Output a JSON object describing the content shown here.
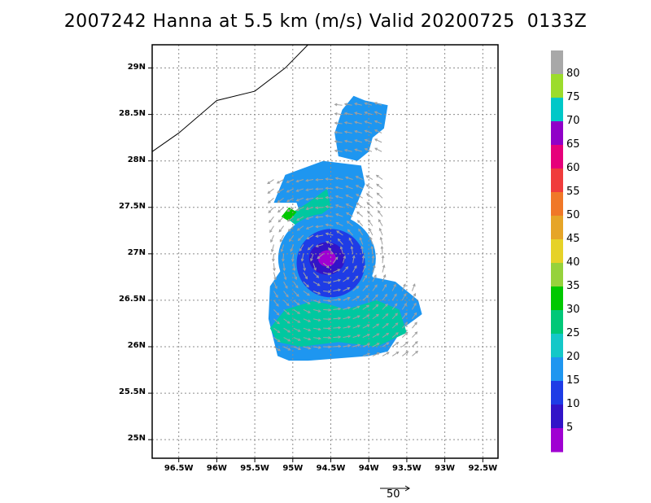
{
  "title": "2007242 Hanna at 5.5 km (m/s) Valid 20200725  0133Z",
  "map": {
    "lon_range": [
      -96.85,
      -92.3
    ],
    "lat_range": [
      24.8,
      29.25
    ],
    "lat_ticks": [
      "29N",
      "28.5N",
      "28N",
      "27.5N",
      "27N",
      "26.5N",
      "26N",
      "25.5N",
      "25N"
    ],
    "lat_values": [
      29.0,
      28.5,
      28.0,
      27.5,
      27.0,
      26.5,
      26.0,
      25.5,
      25.0
    ],
    "lon_ticks": [
      "96.5W",
      "96W",
      "95.5W",
      "95W",
      "94.5W",
      "94W",
      "93.5W",
      "93W",
      "92.5W"
    ],
    "lon_values": [
      -96.5,
      -96.0,
      -95.5,
      -95.0,
      -94.5,
      -94.0,
      -93.5,
      -93.0,
      -92.5
    ],
    "coastline": [
      [
        -96.85,
        28.1
      ],
      [
        -96.5,
        28.3
      ],
      [
        -96.0,
        28.65
      ],
      [
        -95.5,
        28.75
      ],
      [
        -95.1,
        29.0
      ],
      [
        -94.8,
        29.25
      ]
    ],
    "storm_center": [
      -94.55,
      26.95
    ]
  },
  "colorbar": {
    "labels": [
      "80",
      "75",
      "70",
      "65",
      "60",
      "55",
      "50",
      "45",
      "40",
      "35",
      "30",
      "25",
      "20",
      "15",
      "10",
      "5"
    ],
    "colors": [
      "#a8a8a8",
      "#9cdc2c",
      "#00c8c8",
      "#9000c8",
      "#e6007a",
      "#f03c3c",
      "#f07828",
      "#e6a528",
      "#e6d228",
      "#96d23c",
      "#00c800",
      "#00c878",
      "#14c8c8",
      "#1e96f0",
      "#1e3ce6",
      "#3214c8",
      "#a000d2"
    ]
  },
  "reference_vector": {
    "label": "50",
    "value_ms": 50
  }
}
